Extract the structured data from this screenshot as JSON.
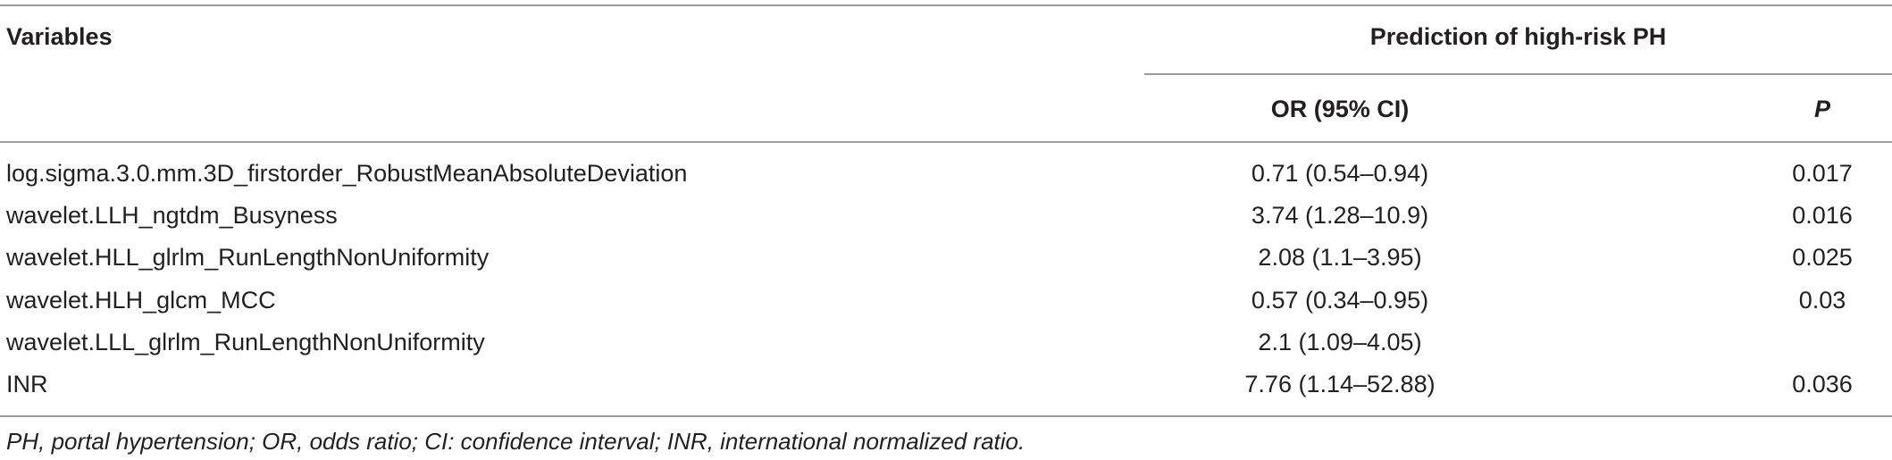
{
  "table": {
    "header": {
      "variables": "Variables",
      "group": "Prediction of high-risk PH",
      "or_col": "OR (95% CI)",
      "p_col": "P"
    },
    "rows": [
      {
        "variable": "log.sigma.3.0.mm.3D_firstorder_RobustMeanAbsoluteDeviation",
        "or": "0.71 (0.54–0.94)",
        "p": "0.017"
      },
      {
        "variable": "wavelet.LLH_ngtdm_Busyness",
        "or": "3.74 (1.28–10.9)",
        "p": "0.016"
      },
      {
        "variable": "wavelet.HLL_glrlm_RunLengthNonUniformity",
        "or": "2.08 (1.1–3.95)",
        "p": "0.025"
      },
      {
        "variable": "wavelet.HLH_glcm_MCC",
        "or": "0.57 (0.34–0.95)",
        "p": "0.03"
      },
      {
        "variable": "wavelet.LLL_glrlm_RunLengthNonUniformity",
        "or": "2.1 (1.09–4.05)",
        "p": ""
      },
      {
        "variable": "INR",
        "or": "7.76 (1.14–52.88)",
        "p": "0.036"
      }
    ]
  },
  "footnote": "PH, portal hypertension; OR, odds ratio; CI: confidence interval; INR, international normalized ratio."
}
